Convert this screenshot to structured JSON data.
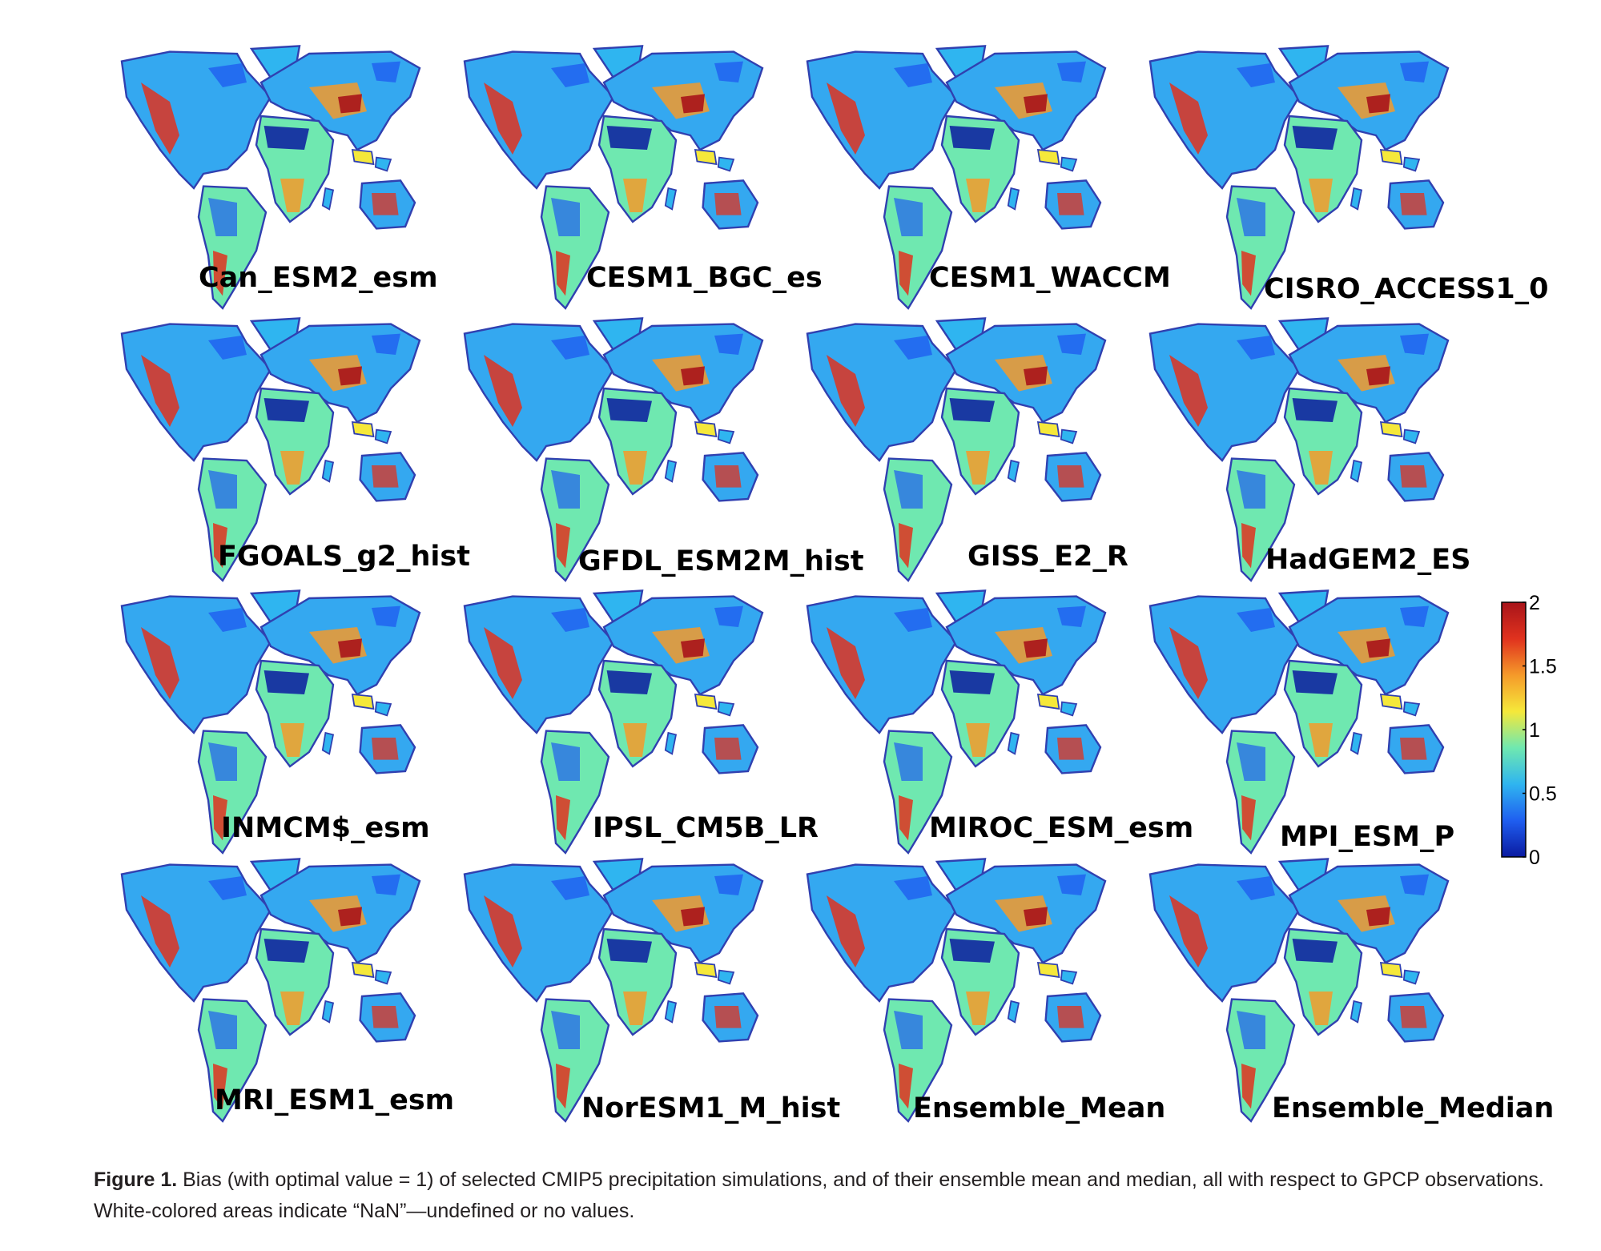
{
  "panels": [
    {
      "label": "Can_ESM2_esm"
    },
    {
      "label": "CESM1_BGC_es"
    },
    {
      "label": "CESM1_WACCM"
    },
    {
      "label": "CISRO_ACCESS1_0"
    },
    {
      "label": "FGOALS_g2_hist"
    },
    {
      "label": "GFDL_ESM2M_hist"
    },
    {
      "label": "GISS_E2_R"
    },
    {
      "label": "HadGEM2_ES"
    },
    {
      "label": "INMCM$_esm"
    },
    {
      "label": "IPSL_CM5B_LR"
    },
    {
      "label": "MIROC_ESM_esm"
    },
    {
      "label": "MPI_ESM_P"
    },
    {
      "label": "MRI_ESM1_esm"
    },
    {
      "label": "NorESM1_M_hist"
    },
    {
      "label": "Ensemble_Mean"
    },
    {
      "label": "Ensemble_Median"
    }
  ],
  "colorbar": {
    "ticks": [
      "2",
      "1.5",
      "1",
      "0.5",
      "0"
    ],
    "colors": [
      "#0a1aa0",
      "#1f5ef0",
      "#2fb5f0",
      "#6fe8b0",
      "#f5e83a",
      "#f59a2a",
      "#e0321e",
      "#a8141a"
    ]
  },
  "caption": {
    "prefix": "Figure 1.",
    "text": " Bias (with optimal value = 1) of selected CMIP5 precipitation simulations, and of their ensemble mean and median, all with respect to GPCP observations. White-colored areas indicate “NaN”—undefined or no values."
  }
}
